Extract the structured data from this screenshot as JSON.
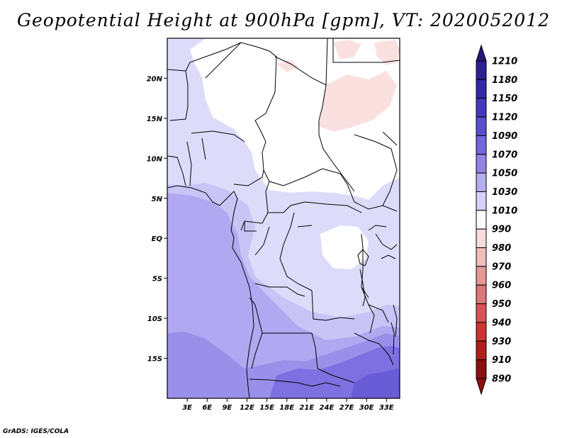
{
  "title": "Geopotential Height at 900hPa [gpm], VT: 2020052012",
  "credit": "GrADS: IGES/COLA",
  "map": {
    "lon_range": [
      0,
      35
    ],
    "lat_range": [
      -20,
      25
    ],
    "lat_ticks": [
      {
        "value": 20,
        "label": "20N"
      },
      {
        "value": 15,
        "label": "15N"
      },
      {
        "value": 10,
        "label": "10N"
      },
      {
        "value": 5,
        "label": "5N"
      },
      {
        "value": 0,
        "label": "EQ"
      },
      {
        "value": -5,
        "label": "5S"
      },
      {
        "value": -10,
        "label": "10S"
      },
      {
        "value": -15,
        "label": "15S"
      }
    ],
    "lon_ticks": [
      {
        "value": 3,
        "label": "3E"
      },
      {
        "value": 6,
        "label": "6E"
      },
      {
        "value": 9,
        "label": "9E"
      },
      {
        "value": 12,
        "label": "12E"
      },
      {
        "value": 15,
        "label": "15E"
      },
      {
        "value": 18,
        "label": "18E"
      },
      {
        "value": 21,
        "label": "21E"
      },
      {
        "value": 24,
        "label": "24E"
      },
      {
        "value": 27,
        "label": "27E"
      },
      {
        "value": 30,
        "label": "30E"
      },
      {
        "value": 33,
        "label": "33E"
      }
    ]
  },
  "colorbar": {
    "units": "gpm",
    "levels": [
      {
        "label": "1210",
        "color": "#241878"
      },
      {
        "label": "1180",
        "color": "#2c2090"
      },
      {
        "label": "1150",
        "color": "#3428a8"
      },
      {
        "label": "1120",
        "color": "#4538bc"
      },
      {
        "label": "1090",
        "color": "#5a4ed0"
      },
      {
        "label": "1070",
        "color": "#7466dc"
      },
      {
        "label": "1050",
        "color": "#9284e6"
      },
      {
        "label": "1030",
        "color": "#b4aef0"
      },
      {
        "label": "1010",
        "color": "#d4d2f8"
      },
      {
        "label": "990",
        "color": "#fafafa"
      },
      {
        "label": "980",
        "color": "#f8dcdc"
      },
      {
        "label": "970",
        "color": "#f0bcbc"
      },
      {
        "label": "960",
        "color": "#e69898"
      },
      {
        "label": "950",
        "color": "#dc7878"
      },
      {
        "label": "940",
        "color": "#d85454"
      },
      {
        "label": "930",
        "color": "#cc3434"
      },
      {
        "label": "910",
        "color": "#b01e1e"
      },
      {
        "label": "890",
        "color": "#8c1010"
      }
    ]
  },
  "colors": {
    "field_white": "#ffffff",
    "field_1010": "#dcdcfa",
    "field_1030": "#c8c4f6",
    "field_1050": "#b0a8f0",
    "field_1070": "#9a90ea",
    "field_1090": "#7e70e0",
    "field_high": "#6a5cd6",
    "field_low": "#fbe0e0"
  }
}
